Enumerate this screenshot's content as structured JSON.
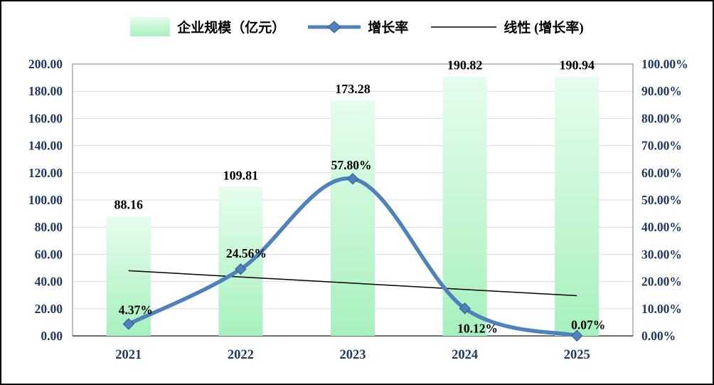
{
  "legend": {
    "items": [
      {
        "label": "企业规模（亿元）",
        "swatch": "bar"
      },
      {
        "label": "增长率",
        "swatch": "line-diamond"
      },
      {
        "label": "线性 (增长率)",
        "swatch": "line"
      }
    ]
  },
  "chart_data": {
    "type": "combo",
    "categories": [
      "2021",
      "2022",
      "2023",
      "2024",
      "2025"
    ],
    "series": [
      {
        "name": "企业规模（亿元）",
        "type": "bar",
        "axis": "left",
        "values": [
          88.16,
          109.81,
          173.28,
          190.82,
          190.94
        ],
        "data_labels": [
          "88.16",
          "109.81",
          "173.28",
          "190.82",
          "190.94"
        ]
      },
      {
        "name": "增长率",
        "type": "line",
        "axis": "right",
        "values": [
          4.37,
          24.56,
          57.8,
          10.12,
          0.07
        ],
        "data_labels": [
          "4.37%",
          "24.56%",
          "57.80%",
          "10.12%",
          "0.07%"
        ]
      },
      {
        "name": "线性 (增长率)",
        "type": "linear-trendline",
        "axis": "right",
        "endpoints": [
          23.99,
          14.78
        ]
      }
    ],
    "left_axis": {
      "min": 0,
      "max": 200,
      "step": 20,
      "tick_labels": [
        "0.00",
        "20.00",
        "40.00",
        "60.00",
        "80.00",
        "100.00",
        "120.00",
        "140.00",
        "160.00",
        "180.00",
        "200.00"
      ]
    },
    "right_axis": {
      "min": 0,
      "max": 100,
      "step": 10,
      "tick_labels": [
        "0.00%",
        "10.00%",
        "20.00%",
        "30.00%",
        "40.00%",
        "50.00%",
        "60.00%",
        "70.00%",
        "80.00%",
        "90.00%",
        "100.00%"
      ]
    },
    "grid": true,
    "legend_position": "top"
  },
  "colors": {
    "bar_top": "#e6fdec",
    "bar_bottom": "#a7f0be",
    "line": "#4f81bd",
    "line_edge": "#2e5a8f",
    "trendline": "#000000",
    "axis_text": "#1f3864",
    "data_label": "#000000",
    "grid": "#d9d9d9",
    "plot_border": "#7f7f7f",
    "axis_line": "#404040"
  }
}
